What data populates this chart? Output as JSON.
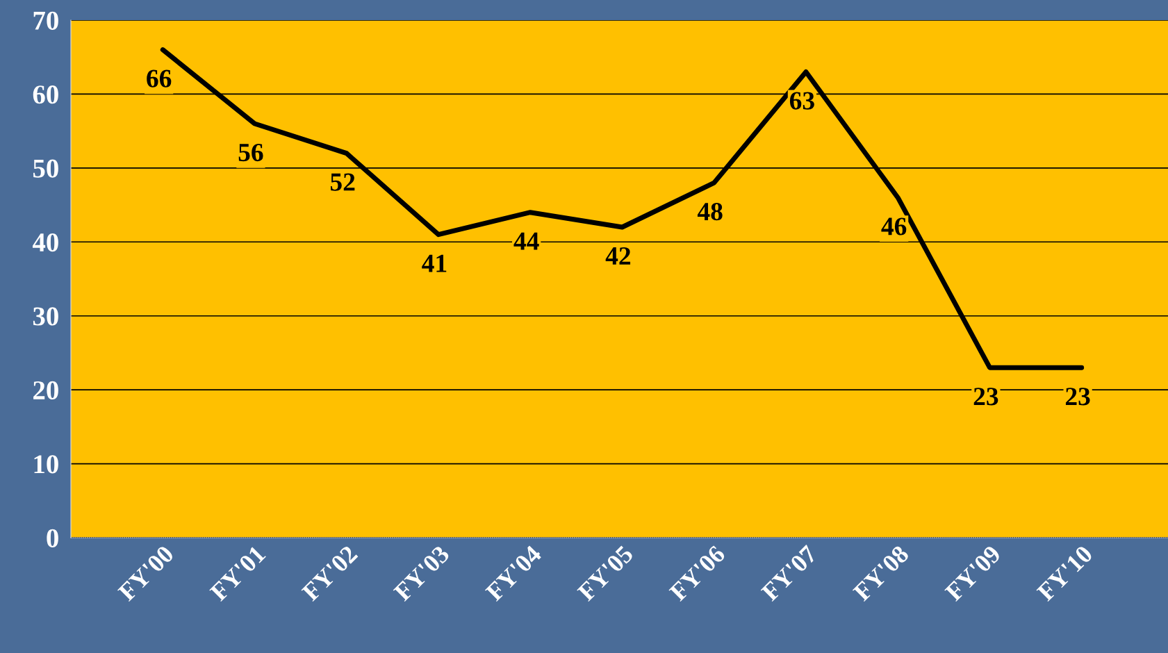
{
  "chart_data": {
    "type": "line",
    "categories": [
      "FY'00",
      "FY'01",
      "FY'02",
      "FY'03",
      "FY'04",
      "FY'05",
      "FY'06",
      "FY'07",
      "FY'08",
      "FY'09",
      "FY'10"
    ],
    "series": [
      {
        "color": "#000000",
        "values": [
          66,
          56,
          52,
          41,
          44,
          42,
          48,
          63,
          46,
          23,
          23
        ]
      }
    ],
    "ylim": [
      0,
      70
    ],
    "yticks": [
      0,
      10,
      20,
      30,
      40,
      50,
      60,
      70
    ],
    "grid": "y",
    "data_labels": true,
    "marker": "none",
    "line_style": "solid",
    "legend": false
  }
}
